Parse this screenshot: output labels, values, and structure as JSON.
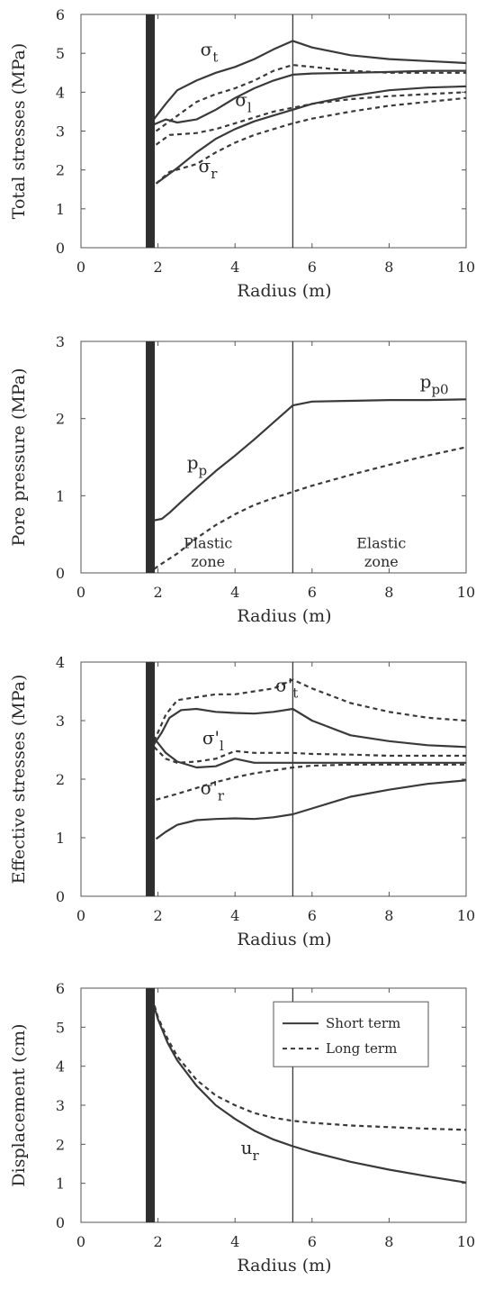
{
  "chart_data": [
    {
      "type": "line",
      "xlabel": "Radius  (m)",
      "ylabel": "Total stresses  (MPa)",
      "xlim": [
        0,
        10
      ],
      "ylim": [
        0,
        6
      ],
      "xticks": [
        "0",
        "2",
        "4",
        "6",
        "8",
        "10"
      ],
      "yticks": [
        "0",
        "1",
        "2",
        "3",
        "4",
        "5",
        "6"
      ],
      "annotations": [
        {
          "main": "σ",
          "sub": "t",
          "x": 3.1,
          "y": 4.95
        },
        {
          "main": "σ",
          "sub": "l",
          "x": 4.0,
          "y": 3.65
        },
        {
          "main": "σ",
          "sub": "r",
          "x": 3.05,
          "y": 1.95
        }
      ],
      "series": [
        {
          "style": "solid",
          "x": [
            1.85,
            2.2,
            2.5,
            3,
            3.5,
            4,
            4.5,
            5,
            5.5,
            6,
            7,
            8,
            9,
            10
          ],
          "y": [
            3.25,
            3.7,
            4.05,
            4.3,
            4.5,
            4.65,
            4.85,
            5.1,
            5.32,
            5.15,
            4.95,
            4.85,
            4.8,
            4.75
          ]
        },
        {
          "style": "solid",
          "x": [
            1.85,
            2.2,
            2.5,
            3,
            3.5,
            4,
            4.5,
            5,
            5.5,
            6,
            7,
            8,
            9,
            10
          ],
          "y": [
            3.15,
            3.3,
            3.22,
            3.3,
            3.55,
            3.85,
            4.1,
            4.3,
            4.45,
            4.48,
            4.5,
            4.52,
            4.55,
            4.55
          ]
        },
        {
          "style": "solid",
          "x": [
            1.95,
            2.5,
            3,
            3.5,
            4,
            4.5,
            5,
            5.5,
            6,
            7,
            8,
            9,
            10
          ],
          "y": [
            1.65,
            2.05,
            2.45,
            2.8,
            3.05,
            3.25,
            3.4,
            3.55,
            3.7,
            3.9,
            4.05,
            4.12,
            4.15
          ]
        },
        {
          "style": "dashed",
          "x": [
            1.95,
            2.3,
            3,
            3.5,
            4,
            4.5,
            5,
            5.5,
            6,
            7,
            8,
            9,
            10
          ],
          "y": [
            3.0,
            3.25,
            3.75,
            3.95,
            4.1,
            4.3,
            4.55,
            4.7,
            4.65,
            4.55,
            4.5,
            4.5,
            4.5
          ]
        },
        {
          "style": "dashed",
          "x": [
            1.95,
            2.3,
            3,
            3.5,
            4,
            4.5,
            5,
            5.5,
            6,
            7,
            8,
            9,
            10
          ],
          "y": [
            2.65,
            2.9,
            2.95,
            3.05,
            3.2,
            3.35,
            3.5,
            3.6,
            3.7,
            3.82,
            3.9,
            3.95,
            4.0
          ]
        },
        {
          "style": "dashed",
          "x": [
            1.95,
            2.3,
            3,
            3.5,
            4,
            4.5,
            5,
            5.5,
            6,
            7,
            8,
            9,
            10
          ],
          "y": [
            1.65,
            1.95,
            2.15,
            2.45,
            2.7,
            2.9,
            3.05,
            3.2,
            3.32,
            3.5,
            3.65,
            3.75,
            3.85
          ]
        }
      ]
    },
    {
      "type": "line",
      "xlabel": "Radius  (m)",
      "ylabel": "Pore pressure  (MPa)",
      "xlim": [
        0,
        10
      ],
      "ylim": [
        0,
        3
      ],
      "xticks": [
        "0",
        "2",
        "4",
        "6",
        "8",
        "10"
      ],
      "yticks": [
        "0",
        "1",
        "2",
        "3"
      ],
      "annotations": [
        {
          "main": "p",
          "sub": "p",
          "x": 2.75,
          "y": 1.35
        },
        {
          "main": "p",
          "sub": "p0",
          "x": 8.8,
          "y": 2.4
        }
      ],
      "zone_labels": [
        {
          "text": "Plastic",
          "x": 3.3,
          "y": 0.32
        },
        {
          "text": "zone",
          "x": 3.3,
          "y": 0.08
        },
        {
          "text": "Elastic",
          "x": 7.8,
          "y": 0.32
        },
        {
          "text": "zone",
          "x": 7.8,
          "y": 0.08
        }
      ],
      "series": [
        {
          "style": "solid",
          "x": [
            1.9,
            2.1,
            2.3,
            2.6,
            3,
            3.5,
            4,
            4.5,
            5,
            5.5,
            6,
            7,
            8,
            9,
            10
          ],
          "y": [
            0.68,
            0.7,
            0.78,
            0.92,
            1.1,
            1.32,
            1.52,
            1.73,
            1.95,
            2.17,
            2.22,
            2.23,
            2.24,
            2.24,
            2.25
          ]
        },
        {
          "style": "dashed",
          "x": [
            1.9,
            2.1,
            2.5,
            3,
            3.5,
            4,
            4.5,
            5,
            5.5,
            6,
            7,
            8,
            9,
            10
          ],
          "y": [
            0.05,
            0.12,
            0.25,
            0.45,
            0.62,
            0.76,
            0.88,
            0.97,
            1.05,
            1.13,
            1.27,
            1.4,
            1.52,
            1.63
          ]
        }
      ]
    },
    {
      "type": "line",
      "xlabel": "Radius  (m)",
      "ylabel": "Effective stresses  (MPa)",
      "xlim": [
        0,
        10
      ],
      "ylim": [
        0,
        4
      ],
      "xticks": [
        "0",
        "2",
        "4",
        "6",
        "8",
        "10"
      ],
      "yticks": [
        "0",
        "1",
        "2",
        "3",
        "4"
      ],
      "annotations": [
        {
          "main": "σ'",
          "sub": "t",
          "x": 5.05,
          "y": 3.5
        },
        {
          "main": "σ'",
          "sub": "l",
          "x": 3.15,
          "y": 2.6
        },
        {
          "main": "σ'",
          "sub": "r",
          "x": 3.1,
          "y": 1.75
        }
      ],
      "series": [
        {
          "style": "solid",
          "x": [
            1.9,
            2.1,
            2.3,
            2.6,
            3,
            3.5,
            4,
            4.5,
            5,
            5.5,
            6,
            7,
            8,
            9,
            10
          ],
          "y": [
            2.6,
            2.8,
            3.05,
            3.18,
            3.2,
            3.15,
            3.13,
            3.12,
            3.15,
            3.2,
            3.0,
            2.75,
            2.65,
            2.58,
            2.55
          ]
        },
        {
          "style": "solid",
          "x": [
            1.9,
            2.2,
            2.5,
            3,
            3.5,
            4,
            4.5,
            5,
            5.5,
            6,
            7,
            8,
            9,
            10
          ],
          "y": [
            2.7,
            2.45,
            2.3,
            2.2,
            2.22,
            2.35,
            2.28,
            2.28,
            2.28,
            2.28,
            2.28,
            2.28,
            2.28,
            2.28
          ]
        },
        {
          "style": "solid",
          "x": [
            1.95,
            2.2,
            2.5,
            3,
            3.5,
            4,
            4.5,
            5,
            5.5,
            6,
            7,
            8,
            9,
            10
          ],
          "y": [
            0.98,
            1.1,
            1.22,
            1.3,
            1.32,
            1.33,
            1.32,
            1.35,
            1.4,
            1.5,
            1.7,
            1.82,
            1.92,
            1.98
          ]
        },
        {
          "style": "dashed",
          "x": [
            1.9,
            2.2,
            2.5,
            3,
            3.5,
            4,
            4.5,
            5,
            5.5,
            6,
            7,
            8,
            9,
            10
          ],
          "y": [
            2.65,
            3.1,
            3.35,
            3.4,
            3.45,
            3.45,
            3.5,
            3.55,
            3.7,
            3.55,
            3.3,
            3.15,
            3.05,
            3.0
          ]
        },
        {
          "style": "dashed",
          "x": [
            1.9,
            2.2,
            2.5,
            3,
            3.5,
            4,
            4.5,
            5,
            5.5,
            6,
            7,
            8,
            9,
            10
          ],
          "y": [
            2.55,
            2.35,
            2.28,
            2.3,
            2.35,
            2.48,
            2.45,
            2.45,
            2.45,
            2.43,
            2.42,
            2.4,
            2.4,
            2.4
          ]
        },
        {
          "style": "dashed",
          "x": [
            1.95,
            2.5,
            3,
            3.5,
            4,
            4.5,
            5,
            5.5,
            6,
            7,
            8,
            9,
            10
          ],
          "y": [
            1.65,
            1.75,
            1.85,
            1.95,
            2.03,
            2.1,
            2.15,
            2.2,
            2.23,
            2.25,
            2.25,
            2.25,
            2.25
          ]
        }
      ]
    },
    {
      "type": "line",
      "xlabel": "Radius  (m)",
      "ylabel": "Displacement  (cm)",
      "xlim": [
        0,
        10
      ],
      "ylim": [
        0,
        6
      ],
      "xticks": [
        "0",
        "2",
        "4",
        "6",
        "8",
        "10"
      ],
      "yticks": [
        "0",
        "1",
        "2",
        "3",
        "4",
        "5",
        "6"
      ],
      "legend": {
        "position": "top-right",
        "entries": [
          "Short term",
          "Long term"
        ]
      },
      "annotations": [
        {
          "main": "u",
          "sub": "r",
          "x": 4.15,
          "y": 1.75
        }
      ],
      "series": [
        {
          "name": "Short term",
          "style": "solid",
          "x": [
            1.85,
            2,
            2.25,
            2.5,
            3,
            3.5,
            4,
            4.5,
            5,
            5.5,
            6,
            7,
            8,
            9,
            10
          ],
          "y": [
            5.7,
            5.2,
            4.6,
            4.15,
            3.5,
            3.0,
            2.65,
            2.35,
            2.12,
            1.95,
            1.8,
            1.55,
            1.35,
            1.18,
            1.02
          ]
        },
        {
          "name": "Long term",
          "style": "dashed",
          "x": [
            1.85,
            2,
            2.25,
            2.5,
            3,
            3.5,
            4,
            4.5,
            5,
            5.5,
            6,
            7,
            8,
            9,
            10
          ],
          "y": [
            5.75,
            5.25,
            4.7,
            4.25,
            3.65,
            3.25,
            3.0,
            2.8,
            2.68,
            2.6,
            2.55,
            2.48,
            2.44,
            2.4,
            2.37
          ]
        }
      ]
    }
  ],
  "colors": {
    "line": "#3a3a3a",
    "wall": "#2f2f2f",
    "axis": "#555555"
  }
}
